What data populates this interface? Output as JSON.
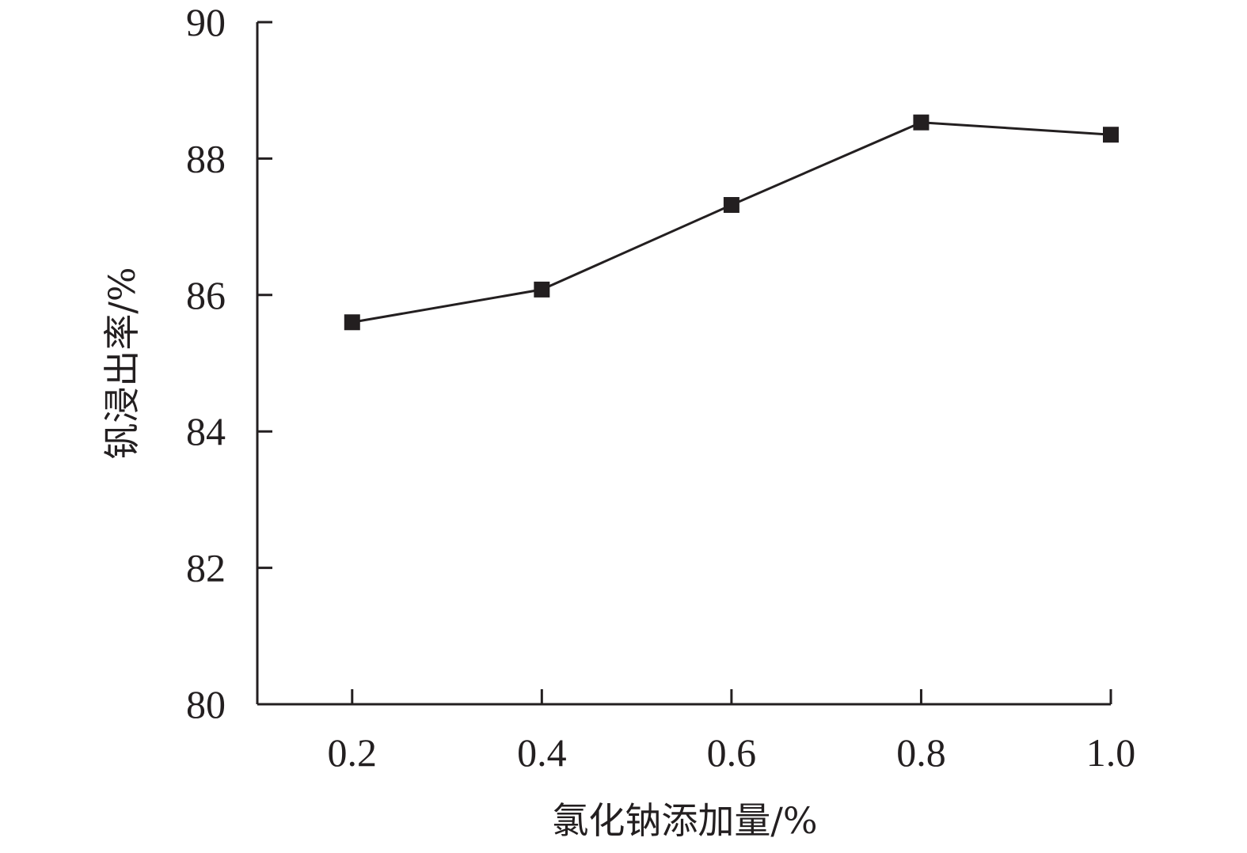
{
  "chart_data": {
    "type": "line",
    "title": "",
    "xlabel": "氯化钠添加量/%",
    "ylabel": "钒浸出率/%",
    "x": [
      0.2,
      0.4,
      0.6,
      0.8,
      1.0
    ],
    "x_tick_labels": [
      "0.2",
      "0.4",
      "0.6",
      "0.8",
      "1.0"
    ],
    "y_tick_labels": [
      "80",
      "82",
      "84",
      "86",
      "88",
      "90"
    ],
    "y_ticks": [
      80,
      82,
      84,
      86,
      88,
      90
    ],
    "ylim": [
      80,
      90
    ],
    "xlim": [
      0.1,
      1.0
    ],
    "grid": false,
    "legend": "none",
    "series": [
      {
        "values": [
          85.6,
          86.08,
          87.32,
          88.53,
          88.35
        ],
        "marker": "square",
        "color": "#231f20"
      }
    ]
  }
}
